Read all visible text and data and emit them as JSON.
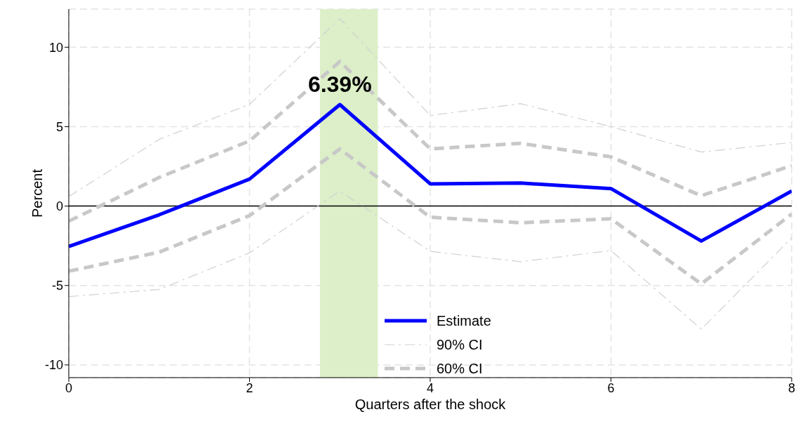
{
  "chart_data": {
    "type": "line",
    "xlabel": "Quarters after the shock",
    "ylabel": "Percent",
    "x": [
      0,
      1,
      2,
      3,
      4,
      5,
      6,
      7,
      8
    ],
    "series": [
      {
        "name": "Estimate",
        "color": "#0000ff",
        "line_style": "solid",
        "values": [
          -2.54,
          -0.55,
          1.7,
          6.39,
          1.4,
          1.45,
          1.1,
          -2.2,
          0.95
        ]
      },
      {
        "name": "90% CI",
        "color": "#d0d0d0",
        "line_style": "dotted",
        "values": [
          0.6,
          4.2,
          6.4,
          11.8,
          5.7,
          6.45,
          5.0,
          3.4,
          4.0
        ]
      },
      {
        "color": "#d0d0d0",
        "line_style": "dotted",
        "values": [
          -5.7,
          -5.25,
          -2.95,
          0.95,
          -2.85,
          -3.5,
          -2.8,
          -7.75,
          -2.0
        ]
      },
      {
        "name": "60% CI",
        "color": "#c8c8c8",
        "line_style": "dashed",
        "values": [
          -0.95,
          1.8,
          4.1,
          9.1,
          3.6,
          3.95,
          3.1,
          0.65,
          2.55
        ]
      },
      {
        "color": "#c8c8c8",
        "line_style": "dashed",
        "values": [
          -4.1,
          -2.9,
          -0.6,
          3.6,
          -0.7,
          -1.05,
          -0.8,
          -4.9,
          -0.5
        ]
      }
    ],
    "xlim": [
      0,
      8
    ],
    "xticks": [
      0,
      2,
      4,
      6,
      8
    ],
    "ylim": [
      -10.8,
      12.4
    ],
    "yticks": [
      -10,
      -5,
      0,
      5,
      10
    ],
    "grid": true,
    "legend": "bottom",
    "marker": "none",
    "ref_lines": [
      {
        "axis": "y",
        "value": 0,
        "color": "#000000"
      }
    ],
    "bands": [
      {
        "axis": "x",
        "from": 2.78,
        "to": 3.42,
        "color": "#dcefc8"
      }
    ],
    "annotations": [
      {
        "text": "6.39%",
        "x": 3,
        "y": 6.39
      }
    ]
  }
}
